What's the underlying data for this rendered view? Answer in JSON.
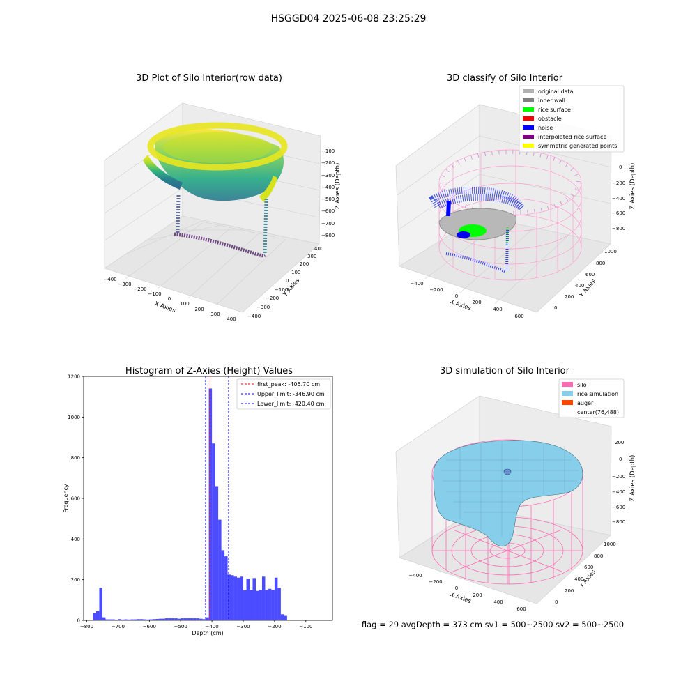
{
  "figure": {
    "suptitle": "HSGGD04 2025-06-08 23:25:29",
    "footer": "flag = 29  avgDepth = 373 cm  sv1 = 500~2500  sv2 = 500~2500"
  },
  "chart_data": [
    {
      "type": "scatter",
      "title": "3D Plot of Silo Interior(row data)",
      "xlabel": "X Axies",
      "ylabel": "Y Axies",
      "zlabel": "Z Axies (Depth)",
      "xlim": [
        -450,
        450
      ],
      "ylim": [
        -450,
        450
      ],
      "zlim": [
        -850,
        -50
      ],
      "x_ticks": [
        -400,
        -300,
        -200,
        -100,
        0,
        100,
        200,
        300,
        400
      ],
      "y_ticks": [
        -400,
        -300,
        -200,
        -100,
        0,
        100,
        200,
        300,
        400
      ],
      "z_ticks": [
        -800,
        -700,
        -600,
        -500,
        -400,
        -300,
        -200,
        -100
      ],
      "colormap": "viridis",
      "structures": [
        {
          "name": "bowl",
          "depth_range": [
            -580,
            -100
          ],
          "radius": 350
        },
        {
          "name": "floor",
          "depth_range": [
            -790,
            -720
          ]
        }
      ]
    },
    {
      "type": "scatter",
      "title": "3D classify of Silo Interior",
      "xlabel": "X Axies",
      "ylabel": "Y Axies",
      "zlabel": "Z Axies (Depth)",
      "xlim": [
        -550,
        700
      ],
      "ylim": [
        -100,
        1100
      ],
      "zlim": [
        -900,
        150
      ],
      "x_ticks": [
        -400,
        -200,
        0,
        200,
        400,
        600
      ],
      "y_ticks": [
        0,
        200,
        400,
        600,
        800,
        1000
      ],
      "z_ticks": [
        -800,
        -600,
        -400,
        -200,
        0
      ],
      "legend": [
        {
          "label": "original data",
          "color": "#b0b0b0"
        },
        {
          "label": "inner wall",
          "color": "#808080"
        },
        {
          "label": "rice surface",
          "color": "#00ff00"
        },
        {
          "label": "obstacle",
          "color": "#ff0000"
        },
        {
          "label": "noise",
          "color": "#0000ff"
        },
        {
          "label": "interpolated rice surface",
          "color": "#800080"
        },
        {
          "label": "symmetric generated points",
          "color": "#ffff00"
        }
      ],
      "legend_position": "top-right",
      "silo_color": "#ff80c0"
    },
    {
      "type": "bar",
      "title": "Histogram of Z-Axies (Height) Values",
      "xlabel": "Depth (cm)",
      "ylabel": "Frequency",
      "xlim": [
        -810,
        -15
      ],
      "ylim": [
        0,
        1200
      ],
      "x_ticks": [
        -800,
        -700,
        -600,
        -500,
        -400,
        -300,
        -200,
        -100
      ],
      "y_ticks": [
        0,
        200,
        400,
        600,
        800,
        1000,
        1200
      ],
      "bar_color": "#4b4bff",
      "bin_width": 10,
      "bins": [
        {
          "x": -785,
          "y": 0
        },
        {
          "x": -775,
          "y": 35
        },
        {
          "x": -765,
          "y": 45
        },
        {
          "x": -755,
          "y": 160
        },
        {
          "x": -745,
          "y": 15
        },
        {
          "x": -735,
          "y": 5
        },
        {
          "x": -725,
          "y": 5
        },
        {
          "x": -715,
          "y": 5
        },
        {
          "x": -705,
          "y": 3
        },
        {
          "x": -695,
          "y": 6
        },
        {
          "x": -685,
          "y": 4
        },
        {
          "x": -675,
          "y": 5
        },
        {
          "x": -665,
          "y": 4
        },
        {
          "x": -655,
          "y": 5
        },
        {
          "x": -645,
          "y": 5
        },
        {
          "x": -635,
          "y": 6
        },
        {
          "x": -625,
          "y": 6
        },
        {
          "x": -615,
          "y": 5
        },
        {
          "x": -605,
          "y": 4
        },
        {
          "x": -595,
          "y": 5
        },
        {
          "x": -585,
          "y": 6
        },
        {
          "x": -575,
          "y": 7
        },
        {
          "x": -565,
          "y": 8
        },
        {
          "x": -555,
          "y": 8
        },
        {
          "x": -545,
          "y": 10
        },
        {
          "x": -535,
          "y": 10
        },
        {
          "x": -525,
          "y": 10
        },
        {
          "x": -515,
          "y": 10
        },
        {
          "x": -505,
          "y": 8
        },
        {
          "x": -495,
          "y": 10
        },
        {
          "x": -485,
          "y": 10
        },
        {
          "x": -475,
          "y": 10
        },
        {
          "x": -465,
          "y": 10
        },
        {
          "x": -455,
          "y": 10
        },
        {
          "x": -445,
          "y": 10
        },
        {
          "x": -435,
          "y": 8
        },
        {
          "x": -425,
          "y": 6
        },
        {
          "x": -415,
          "y": 15
        },
        {
          "x": -405,
          "y": 1140
        },
        {
          "x": -395,
          "y": 870
        },
        {
          "x": -385,
          "y": 660
        },
        {
          "x": -375,
          "y": 495
        },
        {
          "x": -365,
          "y": 345
        },
        {
          "x": -355,
          "y": 315
        },
        {
          "x": -345,
          "y": 225
        },
        {
          "x": -335,
          "y": 222
        },
        {
          "x": -325,
          "y": 215
        },
        {
          "x": -315,
          "y": 210
        },
        {
          "x": -305,
          "y": 215
        },
        {
          "x": -295,
          "y": 148
        },
        {
          "x": -285,
          "y": 205
        },
        {
          "x": -275,
          "y": 150
        },
        {
          "x": -265,
          "y": 208
        },
        {
          "x": -255,
          "y": 145
        },
        {
          "x": -245,
          "y": 150
        },
        {
          "x": -235,
          "y": 215
        },
        {
          "x": -225,
          "y": 150
        },
        {
          "x": -215,
          "y": 155
        },
        {
          "x": -205,
          "y": 150
        },
        {
          "x": -195,
          "y": 210
        },
        {
          "x": -185,
          "y": 160
        },
        {
          "x": -175,
          "y": 30
        },
        {
          "x": -165,
          "y": 22
        }
      ],
      "lines": [
        {
          "label": "first_peak: -405.70 cm",
          "x": -405.7,
          "color": "#ff0000",
          "style": "dashed"
        },
        {
          "label": "Upper_limit: -346.90 cm",
          "x": -346.9,
          "color": "#0000ff",
          "style": "dashed"
        },
        {
          "label": "Lower_limit: -420.40 cm",
          "x": -420.4,
          "color": "#0000ff",
          "style": "dashed"
        }
      ],
      "legend_position": "top-right"
    },
    {
      "type": "area",
      "title": "3D simulation of Silo Interior",
      "xlabel": "X Axies",
      "ylabel": "Y Axies",
      "zlabel": "Z Axies (Depth)",
      "xlim": [
        -550,
        700
      ],
      "ylim": [
        -100,
        1100
      ],
      "zlim": [
        -900,
        300
      ],
      "x_ticks": [
        -400,
        -200,
        0,
        200,
        400,
        600
      ],
      "y_ticks": [
        0,
        200,
        400,
        600,
        800,
        1000
      ],
      "z_ticks": [
        -800,
        -600,
        -400,
        -200,
        0,
        200
      ],
      "legend": [
        {
          "label": "silo",
          "color": "#ff69b4"
        },
        {
          "label": "rice simulation",
          "color": "#87ceeb"
        },
        {
          "label": "auger",
          "color": "#ff4500"
        },
        {
          "label": "center(76,488)",
          "color": ""
        }
      ],
      "legend_position": "top-right"
    }
  ]
}
